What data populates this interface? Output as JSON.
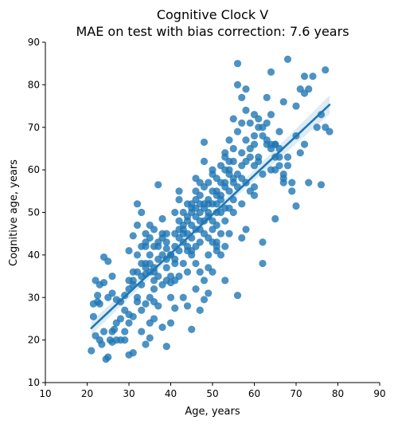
{
  "chart_data": {
    "type": "scatter",
    "title_line1": "Cognitive Clock V",
    "title_line2": "MAE on test with bias correction: 7.6 years",
    "xlabel": "Age, years",
    "ylabel": "Cognitive age, years",
    "xlim": [
      10,
      90
    ],
    "ylim": [
      10,
      90
    ],
    "xticks": [
      10,
      20,
      30,
      40,
      50,
      60,
      70,
      80,
      90
    ],
    "yticks": [
      10,
      20,
      30,
      40,
      50,
      60,
      70,
      80,
      90
    ],
    "grid": false,
    "colors": {
      "points": "#1f77b4",
      "line": "#1f77b4",
      "band": "#1f77b4",
      "axis": "#000000"
    },
    "regression": {
      "x_start": 21,
      "y_start": 22.8,
      "x_end": 78,
      "y_end": 75.3,
      "ci_halfwidth_start": 1.6,
      "ci_halfwidth_mid": 0.7,
      "ci_halfwidth_end": 2.2
    },
    "points": [
      [
        21,
        17.5
      ],
      [
        21.5,
        25.5
      ],
      [
        22,
        21
      ],
      [
        22.5,
        29
      ],
      [
        23,
        20
      ],
      [
        23.5,
        19
      ],
      [
        24,
        22
      ],
      [
        24.5,
        15.5
      ],
      [
        25,
        16
      ],
      [
        25.5,
        20
      ],
      [
        26,
        19.5
      ],
      [
        26.5,
        22.5
      ],
      [
        27,
        24
      ],
      [
        28,
        25
      ],
      [
        29,
        20
      ],
      [
        30,
        16.5
      ],
      [
        31,
        17
      ],
      [
        22,
        34
      ],
      [
        23,
        33
      ],
      [
        24,
        33.5
      ],
      [
        25,
        30
      ],
      [
        26,
        31
      ],
      [
        27,
        29.5
      ],
      [
        28,
        29
      ],
      [
        29,
        27
      ],
      [
        30,
        26
      ],
      [
        24,
        39.5
      ],
      [
        25,
        38.5
      ],
      [
        26,
        35
      ],
      [
        22.5,
        30.5
      ],
      [
        23,
        28.5
      ],
      [
        21.5,
        28.5
      ],
      [
        29,
        30.5
      ],
      [
        30,
        32
      ],
      [
        31,
        34
      ],
      [
        32,
        36
      ],
      [
        32,
        30
      ],
      [
        33,
        33
      ],
      [
        33,
        27
      ],
      [
        34,
        28.5
      ],
      [
        34,
        35.5
      ],
      [
        35,
        30
      ],
      [
        35,
        24
      ],
      [
        36,
        25
      ],
      [
        36,
        29
      ],
      [
        30,
        41
      ],
      [
        31,
        44.5
      ],
      [
        32,
        47
      ],
      [
        32,
        52
      ],
      [
        33,
        50
      ],
      [
        34,
        42
      ],
      [
        34,
        38
      ],
      [
        35,
        40
      ],
      [
        36,
        36
      ],
      [
        36,
        34
      ],
      [
        37,
        42
      ],
      [
        37,
        56.5
      ],
      [
        38,
        48.5
      ],
      [
        38,
        45
      ],
      [
        38,
        40
      ],
      [
        39,
        45
      ],
      [
        39,
        41.5
      ],
      [
        39,
        37
      ],
      [
        40,
        35
      ],
      [
        40,
        33.5
      ],
      [
        40,
        30
      ],
      [
        41,
        34
      ],
      [
        41,
        39
      ],
      [
        41,
        42
      ],
      [
        41,
        45
      ],
      [
        42,
        44
      ],
      [
        42,
        48
      ],
      [
        42,
        53
      ],
      [
        42,
        55
      ],
      [
        43,
        50
      ],
      [
        43,
        46
      ],
      [
        43,
        43
      ],
      [
        43,
        38
      ],
      [
        44,
        41
      ],
      [
        44,
        36
      ],
      [
        44,
        45
      ],
      [
        44,
        52
      ],
      [
        44,
        48
      ],
      [
        45,
        51
      ],
      [
        45,
        50
      ],
      [
        45,
        44
      ],
      [
        45,
        40
      ],
      [
        46,
        46
      ],
      [
        46,
        42
      ],
      [
        46,
        49
      ],
      [
        46,
        55
      ],
      [
        46,
        58
      ],
      [
        47,
        50
      ],
      [
        47,
        57
      ],
      [
        47,
        46
      ],
      [
        47,
        43
      ],
      [
        48,
        48
      ],
      [
        48,
        51
      ],
      [
        48,
        45
      ],
      [
        48,
        62
      ],
      [
        48,
        66.5
      ],
      [
        49,
        53
      ],
      [
        49,
        49
      ],
      [
        49,
        44
      ],
      [
        49,
        40
      ],
      [
        50,
        52
      ],
      [
        50,
        48
      ],
      [
        50,
        46
      ],
      [
        50,
        43
      ],
      [
        50,
        60
      ],
      [
        51,
        55
      ],
      [
        51,
        50
      ],
      [
        51,
        47
      ],
      [
        51,
        42
      ],
      [
        52,
        57
      ],
      [
        52,
        53
      ],
      [
        52,
        50
      ],
      [
        52,
        45
      ],
      [
        53,
        60
      ],
      [
        53,
        56
      ],
      [
        53,
        51
      ],
      [
        53,
        48
      ],
      [
        53,
        63
      ],
      [
        54,
        67
      ],
      [
        54,
        60
      ],
      [
        54,
        55
      ],
      [
        54,
        51
      ],
      [
        55,
        72
      ],
      [
        55,
        65
      ],
      [
        55,
        58
      ],
      [
        55,
        53
      ],
      [
        56,
        85
      ],
      [
        56,
        80
      ],
      [
        56,
        69
      ],
      [
        57,
        77
      ],
      [
        57,
        71
      ],
      [
        57,
        64
      ],
      [
        58,
        79
      ],
      [
        58,
        74
      ],
      [
        58,
        67
      ],
      [
        59,
        71
      ],
      [
        59,
        63
      ],
      [
        60,
        73
      ],
      [
        60,
        66
      ],
      [
        60,
        56
      ],
      [
        61,
        70
      ],
      [
        61,
        62
      ],
      [
        62,
        68
      ],
      [
        62,
        59
      ],
      [
        63,
        77
      ],
      [
        63,
        66
      ],
      [
        64,
        83
      ],
      [
        64,
        73
      ],
      [
        64,
        60
      ],
      [
        65,
        66
      ],
      [
        65,
        60
      ],
      [
        66,
        69
      ],
      [
        66,
        63
      ],
      [
        67,
        76
      ],
      [
        67,
        57
      ],
      [
        68,
        86
      ],
      [
        68,
        63
      ],
      [
        69,
        55
      ],
      [
        70,
        75
      ],
      [
        71,
        79
      ],
      [
        72,
        78
      ],
      [
        72,
        82
      ],
      [
        73,
        79
      ],
      [
        74,
        82
      ],
      [
        75,
        70
      ],
      [
        76,
        73
      ],
      [
        77,
        83.5
      ],
      [
        77,
        70
      ],
      [
        78,
        69
      ],
      [
        76,
        56.5
      ],
      [
        73,
        57
      ],
      [
        70,
        51.5
      ],
      [
        65,
        48.5
      ],
      [
        62,
        38
      ],
      [
        62,
        43
      ],
      [
        60,
        54
      ],
      [
        58,
        46
      ],
      [
        57,
        44
      ],
      [
        56,
        30.5
      ],
      [
        53,
        34
      ],
      [
        51,
        43
      ],
      [
        50,
        36
      ],
      [
        49,
        31
      ],
      [
        48,
        29.5
      ],
      [
        47,
        27
      ],
      [
        46,
        32
      ],
      [
        45,
        22.5
      ],
      [
        44,
        28
      ],
      [
        43,
        30
      ],
      [
        42,
        35
      ],
      [
        41,
        27.5
      ],
      [
        40,
        24
      ],
      [
        39,
        18.5
      ],
      [
        38,
        23
      ],
      [
        37,
        28
      ],
      [
        36,
        32
      ],
      [
        35,
        20.5
      ],
      [
        34,
        19
      ],
      [
        33,
        22
      ],
      [
        32,
        29
      ],
      [
        31,
        25.5
      ],
      [
        30,
        24
      ],
      [
        29,
        22
      ],
      [
        28,
        20
      ],
      [
        27,
        20
      ],
      [
        26,
        22
      ],
      [
        40,
        40
      ],
      [
        41,
        50
      ],
      [
        42,
        46
      ],
      [
        44,
        49
      ],
      [
        45,
        47
      ],
      [
        46,
        53
      ],
      [
        47,
        54
      ],
      [
        48,
        56
      ],
      [
        49,
        57
      ],
      [
        50,
        59
      ],
      [
        51,
        58
      ],
      [
        52,
        61
      ],
      [
        53,
        64
      ],
      [
        54,
        62
      ],
      [
        55,
        62
      ],
      [
        56,
        59
      ],
      [
        57,
        61
      ],
      [
        58,
        62
      ],
      [
        59,
        65
      ],
      [
        60,
        68
      ],
      [
        61,
        72
      ],
      [
        62,
        70
      ],
      [
        63,
        71
      ],
      [
        64,
        65
      ],
      [
        65,
        66
      ],
      [
        66,
        61
      ],
      [
        67,
        59
      ],
      [
        68,
        61
      ],
      [
        69,
        57
      ],
      [
        70,
        68
      ],
      [
        71,
        64
      ],
      [
        72,
        66
      ],
      [
        59,
        55
      ],
      [
        57,
        52
      ],
      [
        55,
        50
      ],
      [
        54,
        45
      ],
      [
        53,
        42
      ],
      [
        52,
        40
      ],
      [
        51,
        41
      ],
      [
        49,
        37
      ],
      [
        48,
        34
      ],
      [
        47,
        36
      ],
      [
        46,
        38
      ],
      [
        45,
        41
      ],
      [
        44,
        42
      ],
      [
        43,
        45
      ],
      [
        42,
        41
      ],
      [
        41,
        38
      ],
      [
        40,
        40
      ],
      [
        39,
        43
      ],
      [
        38,
        44
      ],
      [
        37,
        43
      ],
      [
        36,
        46
      ],
      [
        35,
        44
      ],
      [
        34,
        43
      ],
      [
        33,
        42
      ],
      [
        32,
        40
      ],
      [
        31,
        36
      ],
      [
        30,
        34
      ],
      [
        38,
        33
      ],
      [
        39,
        34
      ],
      [
        37,
        35
      ],
      [
        36,
        37
      ],
      [
        35,
        38
      ],
      [
        34,
        37
      ],
      [
        33,
        38
      ],
      [
        36,
        42
      ],
      [
        35,
        47
      ],
      [
        34,
        45
      ],
      [
        46,
        51
      ],
      [
        47,
        48
      ],
      [
        48,
        52
      ],
      [
        49,
        50
      ],
      [
        50,
        55
      ],
      [
        51,
        52
      ],
      [
        52,
        54
      ],
      [
        53,
        57
      ],
      [
        54,
        59
      ],
      [
        55,
        57
      ],
      [
        56,
        56
      ],
      [
        57,
        58
      ],
      [
        58,
        57
      ],
      [
        60,
        61
      ],
      [
        61,
        63
      ],
      [
        63,
        67
      ],
      [
        64,
        66
      ],
      [
        65,
        63
      ],
      [
        66,
        65
      ],
      [
        67,
        58
      ],
      [
        31,
        33
      ],
      [
        33,
        35
      ],
      [
        35,
        36
      ],
      [
        37,
        39
      ],
      [
        39,
        39
      ],
      [
        43,
        47
      ],
      [
        45,
        52
      ],
      [
        47,
        52
      ],
      [
        49,
        52
      ],
      [
        51,
        54
      ]
    ]
  }
}
